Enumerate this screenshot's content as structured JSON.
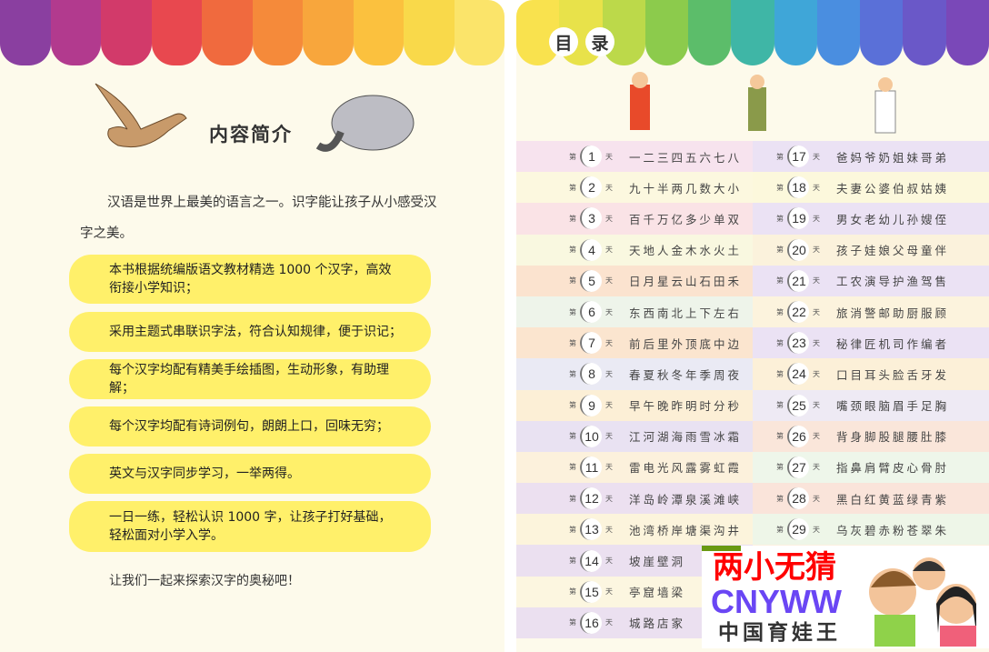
{
  "colors": {
    "awning": [
      "#8a3fa0",
      "#b23a8e",
      "#d23a6a",
      "#e8484f",
      "#f06a3e",
      "#f58a3a",
      "#f8a63c",
      "#fbc13e",
      "#f9d94a",
      "#fbe46a"
    ],
    "awning_right": [
      "#f9e24e",
      "#e8e24a",
      "#bcd94a",
      "#8ccb4c",
      "#5cbd6a",
      "#3fb6a6",
      "#3fa6d8",
      "#4a8ee0",
      "#5a70d8",
      "#6a58c8",
      "#7a48b8"
    ],
    "rows_left": [
      "#f7e3ee",
      "#fcf8df",
      "#fae3e6",
      "#f9f8e0",
      "#fbe3cf",
      "#eef4ea",
      "#fbe5cf",
      "#eaeaf4",
      "#fcefd6",
      "#e9e2f2",
      "#fcf1dc",
      "#ece0f0",
      "#fcf4dc",
      "#ebe0f0",
      "#fcf6e0",
      "#ebe0f0"
    ],
    "rows_right": [
      "#ebe2f4",
      "#fcf8dc",
      "#ebe2f4",
      "#fbf2dc",
      "#ebe2f4",
      "#fcf3dd",
      "#ebe2f4",
      "#fcf0d8",
      "#eeeaf4",
      "#fae6da",
      "#eef6ea",
      "#fae4da",
      "#eef6e8",
      "#fcf0e0",
      "#fcf0e0",
      "#fcf0e0"
    ],
    "bubble": "#fff06a"
  },
  "left_page": {
    "title": "内容简介",
    "intro_line1": "汉语是世界上最美的语言之一。识字能让孩子从小感受汉",
    "intro_line2": "字之美。",
    "bullets": [
      "本书根据统编版语文教材精选 1000 个汉字，高效衔接小学知识；",
      "采用主题式串联识字法，符合认知规律，便于识记；",
      "每个汉字均配有精美手绘插图，生动形象，有助理解；",
      "每个汉字均配有诗词例句，朗朗上口，回味无穷；",
      "英文与汉字同步学习，一举两得。",
      "一日一练，轻松认识 1000 字，让孩子打好基础，轻松面对小学入学。"
    ],
    "closing": "让我们一起来探索汉字的奥秘吧！"
  },
  "toc": {
    "title": [
      "目",
      "录"
    ],
    "prefix": "第",
    "suffix": "天",
    "left": [
      {
        "day": "1",
        "chars": "一二三四五六七八"
      },
      {
        "day": "2",
        "chars": "九十半两几数大小"
      },
      {
        "day": "3",
        "chars": "百千万亿多少单双"
      },
      {
        "day": "4",
        "chars": "天地人金木水火土"
      },
      {
        "day": "5",
        "chars": "日月星云山石田禾"
      },
      {
        "day": "6",
        "chars": "东西南北上下左右"
      },
      {
        "day": "7",
        "chars": "前后里外顶底中边"
      },
      {
        "day": "8",
        "chars": "春夏秋冬年季周夜"
      },
      {
        "day": "9",
        "chars": "早午晚昨明时分秒"
      },
      {
        "day": "10",
        "chars": "江河湖海雨雪冰霜"
      },
      {
        "day": "11",
        "chars": "雷电光风露雾虹霞"
      },
      {
        "day": "12",
        "chars": "洋岛岭潭泉溪滩峡"
      },
      {
        "day": "13",
        "chars": "池湾桥岸塘渠沟井"
      },
      {
        "day": "14",
        "chars": "坡崖壁洞"
      },
      {
        "day": "15",
        "chars": "亭窟墙梁"
      },
      {
        "day": "16",
        "chars": "城路店家"
      }
    ],
    "right": [
      {
        "day": "17",
        "chars": "爸妈爷奶姐妹哥弟"
      },
      {
        "day": "18",
        "chars": "夫妻公婆伯叔姑姨"
      },
      {
        "day": "19",
        "chars": "男女老幼儿孙嫂侄"
      },
      {
        "day": "20",
        "chars": "孩子娃娘父母童伴"
      },
      {
        "day": "21",
        "chars": "工农演导护渔驾售"
      },
      {
        "day": "22",
        "chars": "旅消警邮助厨服顾"
      },
      {
        "day": "23",
        "chars": "秘律匠机司作编者"
      },
      {
        "day": "24",
        "chars": "口目耳头脸舌牙发"
      },
      {
        "day": "25",
        "chars": "嘴颈眼脑眉手足胸"
      },
      {
        "day": "26",
        "chars": "背身脚股腿腰肚膝"
      },
      {
        "day": "27",
        "chars": "指鼻肩臂皮心骨肘"
      },
      {
        "day": "28",
        "chars": "黑白红黄蓝绿青紫"
      },
      {
        "day": "29",
        "chars": "乌灰碧赤粉苍翠朱"
      }
    ]
  },
  "watermark": {
    "line1": "两小无猜",
    "line2": "CNYWW",
    "line3": "中国育娃王"
  }
}
